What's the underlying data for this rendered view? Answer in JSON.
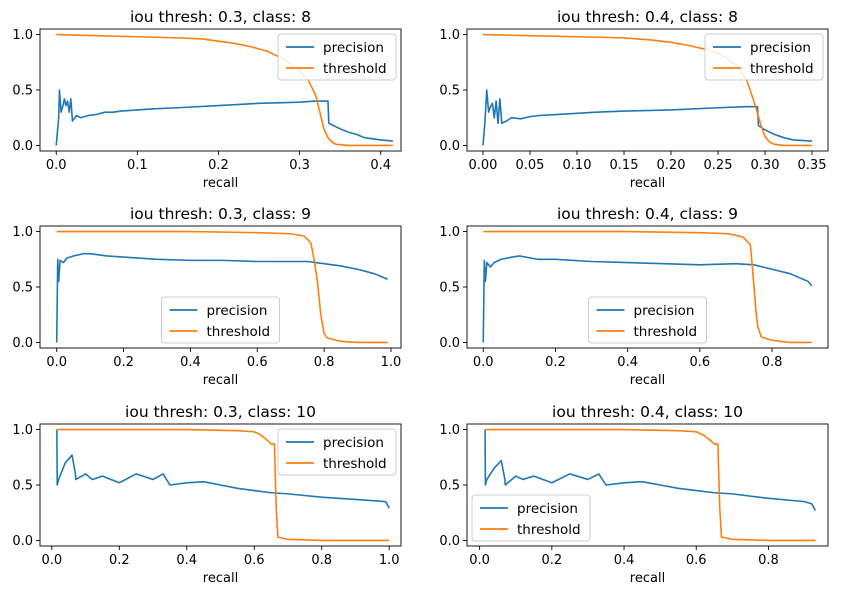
{
  "colors": {
    "precision": "#1f77b4",
    "threshold": "#ff7f0e"
  },
  "chart_data": [
    {
      "type": "line",
      "title": "iou thresh: 0.3, class: 8",
      "xlabel": "recall",
      "xlim": [
        -0.02,
        0.425
      ],
      "ylim": [
        -0.05,
        1.05
      ],
      "xticks": [
        0.0,
        0.1,
        0.2,
        0.3,
        0.4
      ],
      "xtick_labels": [
        "0.0",
        "0.1",
        "0.2",
        "0.3",
        "0.4"
      ],
      "yticks": [
        0.0,
        0.5,
        1.0
      ],
      "ytick_labels": [
        "0.0",
        "0.5",
        "1.0"
      ],
      "legend_loc": "upper-right",
      "series": [
        {
          "name": "precision",
          "color": "#1f77b4",
          "x": [
            0.0,
            0.003,
            0.004,
            0.006,
            0.008,
            0.01,
            0.012,
            0.014,
            0.016,
            0.018,
            0.02,
            0.025,
            0.03,
            0.04,
            0.05,
            0.06,
            0.07,
            0.08,
            0.1,
            0.12,
            0.15,
            0.2,
            0.25,
            0.3,
            0.32,
            0.335,
            0.336,
            0.35,
            0.36,
            0.37,
            0.38,
            0.4,
            0.415
          ],
          "y": [
            0.0,
            0.25,
            0.5,
            0.3,
            0.35,
            0.42,
            0.36,
            0.4,
            0.3,
            0.42,
            0.22,
            0.27,
            0.25,
            0.27,
            0.28,
            0.3,
            0.3,
            0.31,
            0.32,
            0.33,
            0.34,
            0.36,
            0.38,
            0.39,
            0.4,
            0.4,
            0.2,
            0.15,
            0.12,
            0.1,
            0.07,
            0.05,
            0.04
          ]
        },
        {
          "name": "threshold",
          "color": "#ff7f0e",
          "x": [
            0.0,
            0.05,
            0.1,
            0.15,
            0.18,
            0.2,
            0.22,
            0.24,
            0.26,
            0.28,
            0.29,
            0.3,
            0.31,
            0.32,
            0.325,
            0.33,
            0.335,
            0.34,
            0.345,
            0.36,
            0.38,
            0.415
          ],
          "y": [
            1.0,
            0.99,
            0.98,
            0.97,
            0.96,
            0.94,
            0.92,
            0.89,
            0.85,
            0.78,
            0.73,
            0.67,
            0.6,
            0.45,
            0.3,
            0.15,
            0.07,
            0.03,
            0.01,
            0.0,
            0.0,
            0.0
          ]
        }
      ]
    },
    {
      "type": "line",
      "title": "iou thresh: 0.4, class: 8",
      "xlabel": "recall",
      "xlim": [
        -0.017,
        0.367
      ],
      "ylim": [
        -0.05,
        1.05
      ],
      "xticks": [
        0.0,
        0.05,
        0.1,
        0.15,
        0.2,
        0.25,
        0.3,
        0.35
      ],
      "xtick_labels": [
        "0.00",
        "0.05",
        "0.10",
        "0.15",
        "0.20",
        "0.25",
        "0.30",
        "0.35"
      ],
      "yticks": [
        0.0,
        0.5,
        1.0
      ],
      "ytick_labels": [
        "0.0",
        "0.5",
        "1.0"
      ],
      "legend_loc": "upper-right",
      "series": [
        {
          "name": "precision",
          "color": "#1f77b4",
          "x": [
            0.0,
            0.002,
            0.004,
            0.006,
            0.008,
            0.01,
            0.012,
            0.014,
            0.016,
            0.018,
            0.02,
            0.025,
            0.03,
            0.04,
            0.05,
            0.06,
            0.08,
            0.1,
            0.12,
            0.15,
            0.2,
            0.25,
            0.28,
            0.292,
            0.293,
            0.3,
            0.31,
            0.32,
            0.33,
            0.35
          ],
          "y": [
            0.0,
            0.2,
            0.5,
            0.3,
            0.35,
            0.38,
            0.25,
            0.4,
            0.2,
            0.42,
            0.2,
            0.22,
            0.25,
            0.24,
            0.26,
            0.27,
            0.28,
            0.29,
            0.3,
            0.31,
            0.32,
            0.34,
            0.35,
            0.35,
            0.18,
            0.14,
            0.1,
            0.07,
            0.05,
            0.04
          ]
        },
        {
          "name": "threshold",
          "color": "#ff7f0e",
          "x": [
            0.0,
            0.05,
            0.1,
            0.15,
            0.18,
            0.2,
            0.22,
            0.24,
            0.25,
            0.26,
            0.27,
            0.28,
            0.285,
            0.29,
            0.295,
            0.3,
            0.305,
            0.31,
            0.32,
            0.35
          ],
          "y": [
            1.0,
            0.99,
            0.98,
            0.97,
            0.95,
            0.93,
            0.9,
            0.86,
            0.83,
            0.78,
            0.72,
            0.6,
            0.48,
            0.35,
            0.2,
            0.08,
            0.03,
            0.01,
            0.0,
            0.0
          ]
        }
      ]
    },
    {
      "type": "line",
      "title": "iou thresh: 0.3, class: 9",
      "xlabel": "recall",
      "xlim": [
        -0.05,
        1.03
      ],
      "ylim": [
        -0.05,
        1.05
      ],
      "xticks": [
        0.0,
        0.2,
        0.4,
        0.6,
        0.8,
        1.0
      ],
      "xtick_labels": [
        "0.0",
        "0.2",
        "0.4",
        "0.6",
        "0.8",
        "1.0"
      ],
      "yticks": [
        0.0,
        0.5,
        1.0
      ],
      "ytick_labels": [
        "0.0",
        "0.5",
        "1.0"
      ],
      "legend_loc": "lower-center",
      "series": [
        {
          "name": "precision",
          "color": "#1f77b4",
          "x": [
            0.0,
            0.003,
            0.006,
            0.01,
            0.02,
            0.03,
            0.05,
            0.08,
            0.1,
            0.15,
            0.2,
            0.3,
            0.4,
            0.5,
            0.6,
            0.7,
            0.75,
            0.8,
            0.85,
            0.9,
            0.95,
            0.99
          ],
          "y": [
            0.0,
            0.75,
            0.55,
            0.74,
            0.72,
            0.76,
            0.78,
            0.8,
            0.8,
            0.78,
            0.77,
            0.75,
            0.74,
            0.74,
            0.73,
            0.73,
            0.73,
            0.71,
            0.69,
            0.66,
            0.62,
            0.57
          ]
        },
        {
          "name": "threshold",
          "color": "#ff7f0e",
          "x": [
            0.0,
            0.2,
            0.4,
            0.6,
            0.7,
            0.74,
            0.76,
            0.77,
            0.78,
            0.785,
            0.79,
            0.8,
            0.81,
            0.85,
            0.9,
            0.99
          ],
          "y": [
            1.0,
            1.0,
            1.0,
            0.99,
            0.98,
            0.96,
            0.9,
            0.75,
            0.55,
            0.4,
            0.25,
            0.08,
            0.04,
            0.01,
            0.0,
            0.0
          ]
        }
      ]
    },
    {
      "type": "line",
      "title": "iou thresh: 0.4, class: 9",
      "xlabel": "recall",
      "xlim": [
        -0.045,
        0.955
      ],
      "ylim": [
        -0.05,
        1.05
      ],
      "xticks": [
        0.0,
        0.2,
        0.4,
        0.6,
        0.8
      ],
      "xtick_labels": [
        "0.0",
        "0.2",
        "0.4",
        "0.6",
        "0.8"
      ],
      "yticks": [
        0.0,
        0.5,
        1.0
      ],
      "ytick_labels": [
        "0.0",
        "0.5",
        "1.0"
      ],
      "legend_loc": "lower-center",
      "series": [
        {
          "name": "precision",
          "color": "#1f77b4",
          "x": [
            0.0,
            0.003,
            0.006,
            0.01,
            0.02,
            0.03,
            0.05,
            0.08,
            0.1,
            0.15,
            0.2,
            0.3,
            0.4,
            0.5,
            0.6,
            0.7,
            0.75,
            0.8,
            0.85,
            0.9,
            0.91
          ],
          "y": [
            0.0,
            0.74,
            0.55,
            0.72,
            0.68,
            0.72,
            0.75,
            0.77,
            0.78,
            0.75,
            0.75,
            0.73,
            0.72,
            0.71,
            0.7,
            0.71,
            0.7,
            0.66,
            0.62,
            0.55,
            0.51
          ]
        },
        {
          "name": "threshold",
          "color": "#ff7f0e",
          "x": [
            0.0,
            0.2,
            0.4,
            0.6,
            0.68,
            0.72,
            0.74,
            0.745,
            0.75,
            0.755,
            0.76,
            0.77,
            0.8,
            0.85,
            0.91
          ],
          "y": [
            1.0,
            1.0,
            1.0,
            0.99,
            0.98,
            0.95,
            0.88,
            0.7,
            0.5,
            0.3,
            0.15,
            0.05,
            0.02,
            0.0,
            0.0
          ]
        }
      ]
    },
    {
      "type": "line",
      "title": "iou thresh: 0.3, class: 10",
      "xlabel": "recall",
      "xlim": [
        -0.035,
        1.035
      ],
      "ylim": [
        -0.05,
        1.05
      ],
      "xticks": [
        0.0,
        0.2,
        0.4,
        0.6,
        0.8,
        1.0
      ],
      "xtick_labels": [
        "0.0",
        "0.2",
        "0.4",
        "0.6",
        "0.8",
        "1.0"
      ],
      "yticks": [
        0.0,
        0.5,
        1.0
      ],
      "ytick_labels": [
        "0.0",
        "0.5",
        "1.0"
      ],
      "legend_loc": "upper-right",
      "series": [
        {
          "name": "precision",
          "color": "#1f77b4",
          "x": [
            0.015,
            0.016,
            0.02,
            0.04,
            0.06,
            0.07,
            0.071,
            0.1,
            0.12,
            0.15,
            0.2,
            0.25,
            0.3,
            0.33,
            0.35,
            0.4,
            0.45,
            0.5,
            0.55,
            0.6,
            0.65,
            0.7,
            0.8,
            0.9,
            0.99,
            1.0
          ],
          "y": [
            1.0,
            0.5,
            0.55,
            0.7,
            0.77,
            0.6,
            0.55,
            0.6,
            0.55,
            0.58,
            0.52,
            0.6,
            0.55,
            0.6,
            0.5,
            0.52,
            0.53,
            0.5,
            0.47,
            0.45,
            0.43,
            0.42,
            0.39,
            0.37,
            0.35,
            0.29
          ]
        },
        {
          "name": "threshold",
          "color": "#ff7f0e",
          "x": [
            0.015,
            0.2,
            0.4,
            0.55,
            0.6,
            0.62,
            0.64,
            0.65,
            0.66,
            0.665,
            0.67,
            0.7,
            0.8,
            1.0
          ],
          "y": [
            1.0,
            1.0,
            1.0,
            0.99,
            0.98,
            0.95,
            0.9,
            0.87,
            0.87,
            0.3,
            0.03,
            0.01,
            0.0,
            0.0
          ]
        }
      ]
    },
    {
      "type": "line",
      "title": "iou thresh: 0.4, class: 10",
      "xlabel": "recall",
      "xlim": [
        -0.035,
        0.965
      ],
      "ylim": [
        -0.05,
        1.05
      ],
      "xticks": [
        0.0,
        0.2,
        0.4,
        0.6,
        0.8
      ],
      "xtick_labels": [
        "0.0",
        "0.2",
        "0.4",
        "0.6",
        "0.8"
      ],
      "yticks": [
        0.0,
        0.5,
        1.0
      ],
      "ytick_labels": [
        "0.0",
        "0.5",
        "1.0"
      ],
      "legend_loc": "lower-left",
      "series": [
        {
          "name": "precision",
          "color": "#1f77b4",
          "x": [
            0.015,
            0.016,
            0.02,
            0.04,
            0.06,
            0.07,
            0.071,
            0.1,
            0.12,
            0.15,
            0.2,
            0.25,
            0.3,
            0.33,
            0.35,
            0.4,
            0.45,
            0.5,
            0.55,
            0.6,
            0.65,
            0.7,
            0.8,
            0.9,
            0.92,
            0.93
          ],
          "y": [
            1.0,
            0.5,
            0.55,
            0.65,
            0.72,
            0.55,
            0.5,
            0.58,
            0.55,
            0.58,
            0.52,
            0.6,
            0.55,
            0.6,
            0.5,
            0.52,
            0.53,
            0.5,
            0.47,
            0.45,
            0.43,
            0.42,
            0.38,
            0.35,
            0.33,
            0.27
          ]
        },
        {
          "name": "threshold",
          "color": "#ff7f0e",
          "x": [
            0.015,
            0.2,
            0.4,
            0.55,
            0.6,
            0.62,
            0.64,
            0.65,
            0.66,
            0.665,
            0.67,
            0.7,
            0.8,
            0.93
          ],
          "y": [
            1.0,
            1.0,
            1.0,
            0.99,
            0.98,
            0.95,
            0.9,
            0.87,
            0.87,
            0.3,
            0.03,
            0.01,
            0.0,
            0.0
          ]
        }
      ]
    }
  ]
}
